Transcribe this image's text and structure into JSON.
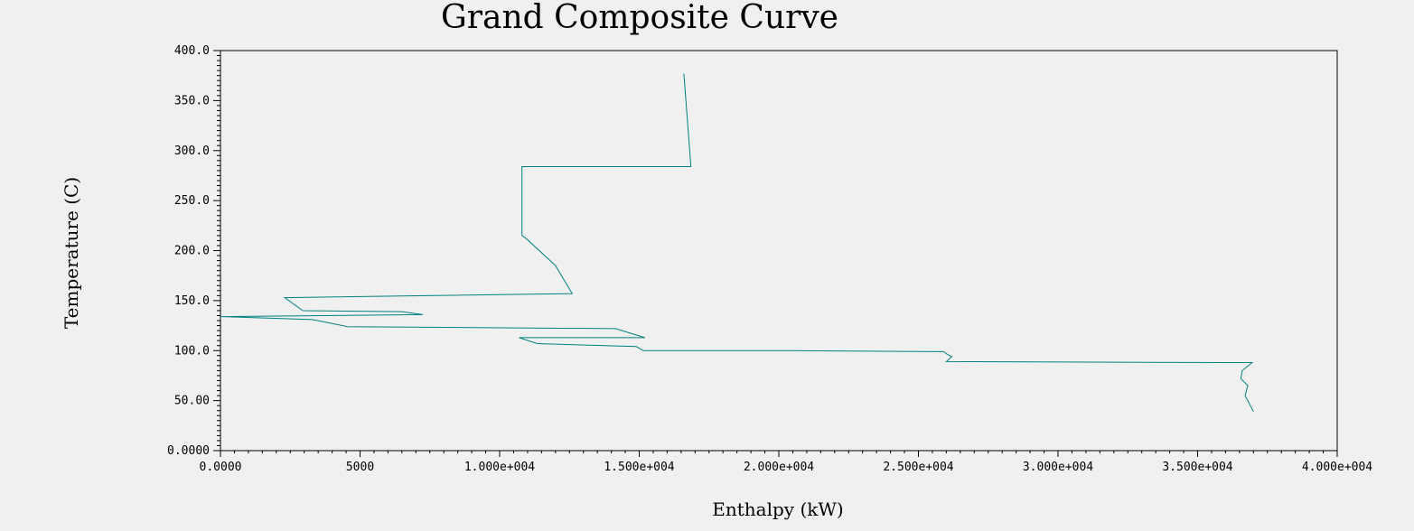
{
  "chart_data": {
    "type": "line",
    "title": "Grand Composite Curve",
    "xlabel": "Enthalpy (kW)",
    "ylabel": "Temperature (C)",
    "xlim": [
      0,
      40000
    ],
    "ylim": [
      0,
      400
    ],
    "x_ticks": [
      {
        "value": 0,
        "label": "0.0000"
      },
      {
        "value": 5000,
        "label": "5000"
      },
      {
        "value": 10000,
        "label": "1.000e+004"
      },
      {
        "value": 15000,
        "label": "1.500e+004"
      },
      {
        "value": 20000,
        "label": "2.000e+004"
      },
      {
        "value": 25000,
        "label": "2.500e+004"
      },
      {
        "value": 30000,
        "label": "3.000e+004"
      },
      {
        "value": 35000,
        "label": "3.500e+004"
      },
      {
        "value": 40000,
        "label": "4.000e+004"
      }
    ],
    "y_ticks": [
      {
        "value": 0,
        "label": "0.0000"
      },
      {
        "value": 50,
        "label": "50.00"
      },
      {
        "value": 100,
        "label": "100.0"
      },
      {
        "value": 150,
        "label": "150.0"
      },
      {
        "value": 200,
        "label": "200.0"
      },
      {
        "value": 250,
        "label": "250.0"
      },
      {
        "value": 300,
        "label": "300.0"
      },
      {
        "value": 350,
        "label": "350.0"
      },
      {
        "value": 400,
        "label": "400.0"
      }
    ],
    "grid": false,
    "colors": {
      "line": "#008080",
      "frame": "#000000",
      "background": "#f0f0f0"
    },
    "series": [
      {
        "x": [
          16600,
          16850,
          10800,
          10800,
          10950,
          12000,
          12600,
          2300,
          2950,
          6500,
          7250,
          0,
          3300,
          4550,
          14150,
          15200,
          10700,
          11350,
          14900,
          15150,
          20500,
          25900,
          26050,
          26200,
          26000,
          36000,
          36950,
          36600,
          36550,
          36800,
          36700,
          36850,
          37000
        ],
        "y": [
          377,
          284,
          284,
          215,
          212,
          185,
          157,
          153,
          140,
          139,
          136,
          134,
          131,
          124,
          122,
          113,
          113,
          107,
          104,
          100,
          100,
          99,
          96,
          94,
          89,
          88,
          88,
          80,
          72,
          65,
          55,
          47,
          39
        ]
      }
    ]
  }
}
